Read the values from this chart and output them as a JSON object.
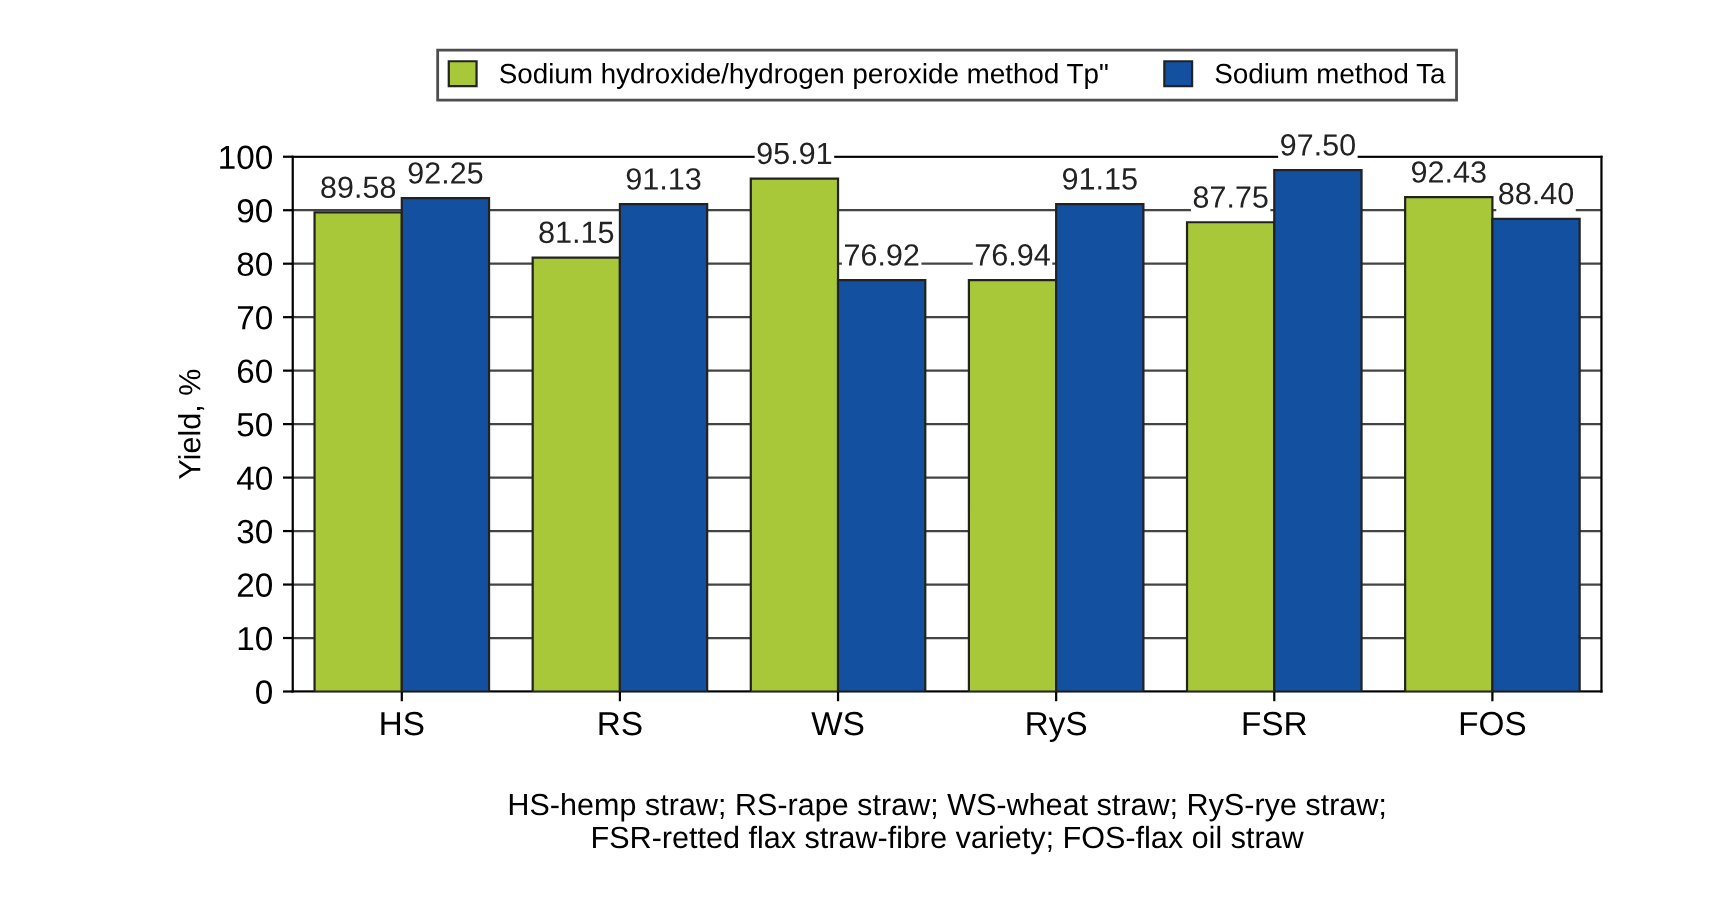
{
  "chart_data": {
    "type": "bar",
    "ylabel": "Yield, %",
    "categories": [
      "HS",
      "RS",
      "WS",
      "RyS",
      "FSR",
      "FOS"
    ],
    "series": [
      {
        "name": "Sodium hydroxide/hydrogen peroxide method Tp\"",
        "color": "#a8c83a",
        "values": [
          89.58,
          81.15,
          95.91,
          76.94,
          87.75,
          92.43
        ],
        "value_labels": [
          "89.58",
          "81.15",
          "95.91",
          "76.94",
          "87.75",
          "92.43"
        ]
      },
      {
        "name": "Sodium method Ta",
        "color": "#1450a0",
        "values": [
          92.25,
          91.13,
          76.92,
          91.15,
          97.5,
          88.4
        ],
        "value_labels": [
          "92.25",
          "91.13",
          "76.92",
          "91.15",
          "97.50",
          "88.40"
        ]
      }
    ],
    "ylim": [
      0,
      100
    ],
    "yticks": [
      0,
      10,
      20,
      30,
      40,
      50,
      60,
      70,
      80,
      90,
      100
    ],
    "grid": "y",
    "legend": "top",
    "annotations": [
      "HS-hemp straw; RS-rape straw; WS-wheat straw; RyS-rye straw;\nFSR-retted flax straw-fibre variety; FOS-flax oil straw"
    ]
  }
}
